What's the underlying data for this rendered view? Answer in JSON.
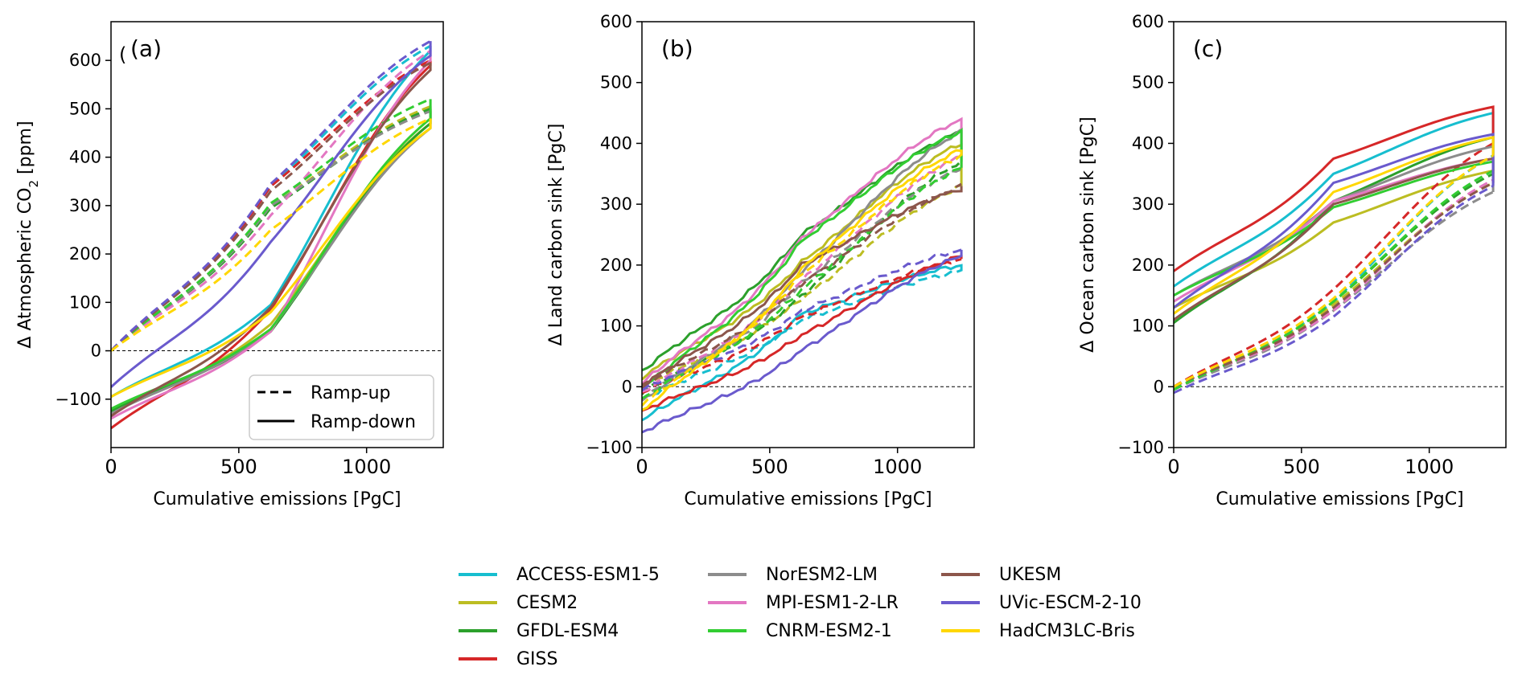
{
  "models": [
    {
      "name": "ACCESS-ESM1-5",
      "color": "#17becf"
    },
    {
      "name": "CESM2",
      "color": "#bcbd22"
    },
    {
      "name": "GFDL-ESM4",
      "color": "#2ca02c"
    },
    {
      "name": "GISS",
      "color": "#d62728"
    },
    {
      "name": "NorESM2-LM",
      "color": "#8c8c8c"
    },
    {
      "name": "MPI-ESM1-2-LR",
      "color": "#e377c2"
    },
    {
      "name": "CNRM-ESM2-1",
      "color": "#32cd32"
    },
    {
      "name": "UKESM",
      "color": "#8c564b"
    },
    {
      "name": "UVic-ESCM-2-10",
      "color": "#6a5acd"
    },
    {
      "name": "HadCM3LC-Bris",
      "color": "#ffd700"
    }
  ],
  "style_legend": {
    "ramp_up": "Ramp-up",
    "ramp_down": "Ramp-down"
  },
  "chart_data": [
    {
      "type": "line",
      "panel_label": "(a)",
      "stray_text": "(",
      "title": "",
      "xlabel": "Cumulative emissions [PgC]",
      "ylabel_prefix": "Δ Atmospheric CO",
      "ylabel_sub": "2",
      "ylabel_suffix": " [ppm]",
      "xlim": [
        0,
        1300
      ],
      "ylim": [
        -200,
        680
      ],
      "xticks": [
        0,
        500,
        1000
      ],
      "yticks": [
        -100,
        0,
        100,
        200,
        300,
        400,
        500,
        600
      ],
      "xtick_labels": [
        "0",
        "500",
        "1000"
      ],
      "ytick_labels": [
        "−100",
        "0",
        "100",
        "200",
        "300",
        "400",
        "500",
        "600"
      ],
      "zero_line": true,
      "up_peak": {
        "ACCESS-ESM1-5": 630,
        "CESM2": 505,
        "GFDL-ESM4": 500,
        "GISS": 600,
        "NorESM2-LM": 495,
        "MPI-ESM1-2-LR": 620,
        "CNRM-ESM2-1": 520,
        "UKESM": 595,
        "UVic-ESCM-2-10": 640,
        "HadCM3LC-Bris": 480
      },
      "up_mid": {
        "ACCESS-ESM1-5": 340,
        "CESM2": 300,
        "GFDL-ESM4": 295,
        "GISS": 340,
        "NorESM2-LM": 300,
        "MPI-ESM1-2-LR": 280,
        "CNRM-ESM2-1": 305,
        "UKESM": 330,
        "UVic-ESCM-2-10": 345,
        "HadCM3LC-Bris": 250
      },
      "down_start": {
        "ACCESS-ESM1-5": -95,
        "CESM2": -130,
        "GFDL-ESM4": -125,
        "GISS": -160,
        "NorESM2-LM": -130,
        "MPI-ESM1-2-LR": -140,
        "CNRM-ESM2-1": -120,
        "UKESM": -135,
        "UVic-ESCM-2-10": -75,
        "HadCM3LC-Bris": -95
      },
      "down_mid": {
        "ACCESS-ESM1-5": 95,
        "CESM2": 55,
        "GFDL-ESM4": 40,
        "GISS": 85,
        "NorESM2-LM": 45,
        "MPI-ESM1-2-LR": 40,
        "CNRM-ESM2-1": 45,
        "UKESM": 90,
        "UVic-ESCM-2-10": 225,
        "HadCM3LC-Bris": 80
      },
      "down_peak": {
        "ACCESS-ESM1-5": 620,
        "CESM2": 470,
        "GFDL-ESM4": 470,
        "GISS": 590,
        "NorESM2-LM": 460,
        "MPI-ESM1-2-LR": 600,
        "CNRM-ESM2-1": 480,
        "UKESM": 580,
        "UVic-ESCM-2-10": 610,
        "HadCM3LC-Bris": 460
      }
    },
    {
      "type": "line",
      "panel_label": "(b)",
      "title": "",
      "xlabel": "Cumulative emissions [PgC]",
      "ylabel": "Δ Land carbon sink [PgC]",
      "xlim": [
        0,
        1300
      ],
      "ylim": [
        -100,
        600
      ],
      "xticks": [
        0,
        500,
        1000
      ],
      "yticks": [
        -100,
        0,
        100,
        200,
        300,
        400,
        500,
        600
      ],
      "xtick_labels": [
        "0",
        "500",
        "1000"
      ],
      "ytick_labels": [
        "−100",
        "0",
        "100",
        "200",
        "300",
        "400",
        "500",
        "600"
      ],
      "zero_line": true,
      "up_start": {
        "ACCESS-ESM1-5": -20,
        "CESM2": 0,
        "GFDL-ESM4": -10,
        "GISS": -10,
        "NorESM2-LM": -20,
        "MPI-ESM1-2-LR": -10,
        "CNRM-ESM2-1": -20,
        "UKESM": 0,
        "UVic-ESCM-2-10": -5,
        "HadCM3LC-Bris": -30
      },
      "up_mid": {
        "ACCESS-ESM1-5": 110,
        "CESM2": 145,
        "GFDL-ESM4": 150,
        "GISS": 115,
        "NorESM2-LM": 170,
        "MPI-ESM1-2-LR": 175,
        "CNRM-ESM2-1": 160,
        "UKESM": 170,
        "UVic-ESCM-2-10": 125,
        "HadCM3LC-Bris": 185
      },
      "up_peak": {
        "ACCESS-ESM1-5": 190,
        "CESM2": 330,
        "GFDL-ESM4": 370,
        "GISS": 210,
        "NorESM2-LM": 360,
        "MPI-ESM1-2-LR": 380,
        "CNRM-ESM2-1": 360,
        "UKESM": 330,
        "UVic-ESCM-2-10": 225,
        "HadCM3LC-Bris": 380
      },
      "down_start": {
        "ACCESS-ESM1-5": -55,
        "CESM2": 15,
        "GFDL-ESM4": 25,
        "GISS": -40,
        "NorESM2-LM": -25,
        "MPI-ESM1-2-LR": 5,
        "CNRM-ESM2-1": -5,
        "UKESM": 0,
        "UVic-ESCM-2-10": -75,
        "HadCM3LC-Bris": -40
      },
      "down_mid": {
        "ACCESS-ESM1-5": 120,
        "CESM2": 205,
        "GFDL-ESM4": 250,
        "GISS": 85,
        "NorESM2-LM": 190,
        "MPI-ESM1-2-LR": 245,
        "CNRM-ESM2-1": 240,
        "UKESM": 200,
        "UVic-ESCM-2-10": 60,
        "HadCM3LC-Bris": 195
      },
      "down_peak": {
        "ACCESS-ESM1-5": 200,
        "CESM2": 400,
        "GFDL-ESM4": 420,
        "GISS": 215,
        "NorESM2-LM": 420,
        "MPI-ESM1-2-LR": 440,
        "CNRM-ESM2-1": 420,
        "UKESM": 325,
        "UVic-ESCM-2-10": 215,
        "HadCM3LC-Bris": 390
      }
    },
    {
      "type": "line",
      "panel_label": "(c)",
      "title": "",
      "xlabel": "Cumulative emissions [PgC]",
      "ylabel": "Δ Ocean carbon sink [PgC]",
      "xlim": [
        0,
        1300
      ],
      "ylim": [
        -100,
        600
      ],
      "xticks": [
        0,
        500,
        1000
      ],
      "yticks": [
        -100,
        0,
        100,
        200,
        300,
        400,
        500,
        600
      ],
      "xtick_labels": [
        "0",
        "500",
        "1000"
      ],
      "ytick_labels": [
        "−100",
        "0",
        "100",
        "200",
        "300",
        "400",
        "500",
        "600"
      ],
      "zero_line": true,
      "up_start": {
        "ACCESS-ESM1-5": 0,
        "CESM2": 0,
        "GFDL-ESM4": -5,
        "GISS": 0,
        "NorESM2-LM": -5,
        "MPI-ESM1-2-LR": 0,
        "CNRM-ESM2-1": -5,
        "UKESM": 0,
        "UVic-ESCM-2-10": -10,
        "HadCM3LC-Bris": 0
      },
      "up_mid": {
        "ACCESS-ESM1-5": 140,
        "CESM2": 135,
        "GFDL-ESM4": 140,
        "GISS": 160,
        "NorESM2-LM": 125,
        "MPI-ESM1-2-LR": 125,
        "CNRM-ESM2-1": 140,
        "UKESM": 130,
        "UVic-ESCM-2-10": 115,
        "HadCM3LC-Bris": 145
      },
      "up_peak": {
        "ACCESS-ESM1-5": 380,
        "CESM2": 335,
        "GFDL-ESM4": 350,
        "GISS": 400,
        "NorESM2-LM": 320,
        "MPI-ESM1-2-LR": 340,
        "CNRM-ESM2-1": 355,
        "UKESM": 335,
        "UVic-ESCM-2-10": 330,
        "HadCM3LC-Bris": 380
      },
      "down_start": {
        "ACCESS-ESM1-5": 165,
        "CESM2": 130,
        "GFDL-ESM4": 105,
        "GISS": 190,
        "NorESM2-LM": 150,
        "MPI-ESM1-2-LR": 140,
        "CNRM-ESM2-1": 150,
        "UKESM": 110,
        "UVic-ESCM-2-10": 130,
        "HadCM3LC-Bris": 120
      },
      "down_mid": {
        "ACCESS-ESM1-5": 350,
        "CESM2": 270,
        "GFDL-ESM4": 305,
        "GISS": 375,
        "NorESM2-LM": 305,
        "MPI-ESM1-2-LR": 305,
        "CNRM-ESM2-1": 295,
        "UKESM": 300,
        "UVic-ESCM-2-10": 335,
        "HadCM3LC-Bris": 320
      },
      "down_peak": {
        "ACCESS-ESM1-5": 450,
        "CESM2": 355,
        "GFDL-ESM4": 410,
        "GISS": 460,
        "NorESM2-LM": 395,
        "MPI-ESM1-2-LR": 375,
        "CNRM-ESM2-1": 370,
        "UKESM": 375,
        "UVic-ESCM-2-10": 415,
        "HadCM3LC-Bris": 410
      }
    }
  ]
}
